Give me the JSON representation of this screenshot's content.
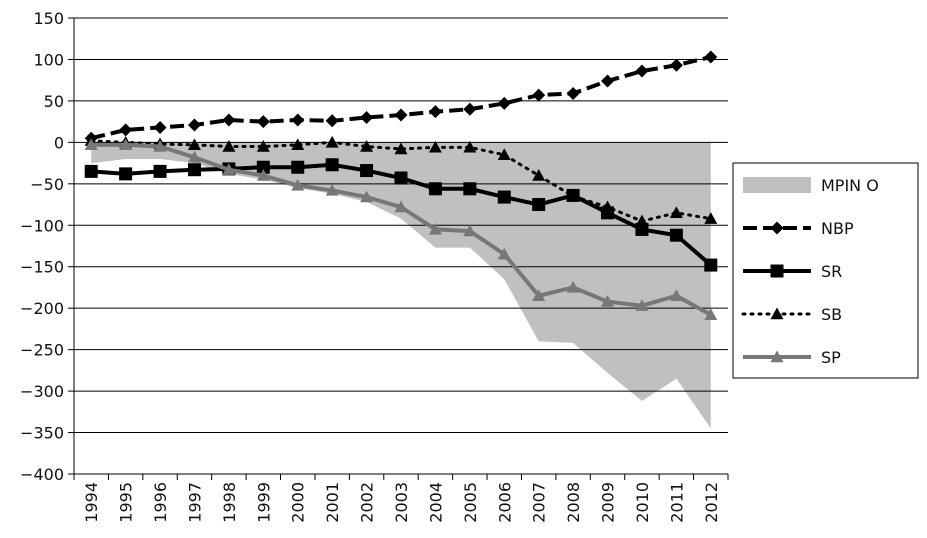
{
  "chart_data": {
    "type": "line",
    "categories": [
      "1994",
      "1995",
      "1996",
      "1997",
      "1998",
      "1999",
      "2000",
      "2001",
      "2002",
      "2003",
      "2004",
      "2005",
      "2006",
      "2007",
      "2008",
      "2009",
      "2010",
      "2011",
      "2012"
    ],
    "ylim": [
      -400,
      150
    ],
    "yticks": [
      {
        "value": -400,
        "label": "−400"
      },
      {
        "value": -350,
        "label": "−350"
      },
      {
        "value": -300,
        "label": "−300"
      },
      {
        "value": -250,
        "label": "−250"
      },
      {
        "value": -200,
        "label": "−200"
      },
      {
        "value": -150,
        "label": "−150"
      },
      {
        "value": -100,
        "label": "−100"
      },
      {
        "value": -50,
        "label": "−50"
      },
      0,
      50,
      100,
      150
    ],
    "grid": true,
    "legend": "right",
    "series": [
      {
        "name": "MPIN O",
        "type": "area",
        "color": "#c0c0c0",
        "values": [
          -25,
          -20,
          -20,
          -25,
          -38,
          -45,
          -55,
          -62,
          -72,
          -92,
          -127,
          -127,
          -165,
          -240,
          -242,
          -278,
          -312,
          -285,
          -345
        ]
      },
      {
        "name": "NBP",
        "color": "#000000",
        "dash": "dashed",
        "marker": "diamond",
        "values": [
          5,
          15,
          18,
          21,
          27,
          25,
          27,
          26,
          30,
          33,
          37,
          40,
          47,
          57,
          59,
          74,
          86,
          93,
          103
        ]
      },
      {
        "name": "SR",
        "color": "#000000",
        "dash": "solid",
        "marker": "square",
        "values": [
          -35,
          -38,
          -35,
          -33,
          -32,
          -30,
          -30,
          -27,
          -34,
          -43,
          -56,
          -56,
          -66,
          -75,
          -64,
          -85,
          -105,
          -112,
          -148
        ]
      },
      {
        "name": "SB",
        "color": "#000000",
        "dash": "dotted",
        "marker": "triangle",
        "values": [
          2,
          0,
          -2,
          -3,
          -5,
          -5,
          -3,
          0,
          -5,
          -8,
          -6,
          -6,
          -15,
          -40,
          -65,
          -78,
          -95,
          -85,
          -92
        ]
      },
      {
        "name": "SP",
        "color": "#777777",
        "dash": "solid",
        "marker": "triangle",
        "values": [
          -3,
          -3,
          -5,
          -18,
          -33,
          -40,
          -52,
          -58,
          -66,
          -78,
          -105,
          -107,
          -135,
          -185,
          -175,
          -192,
          -197,
          -185,
          -208
        ]
      }
    ]
  }
}
